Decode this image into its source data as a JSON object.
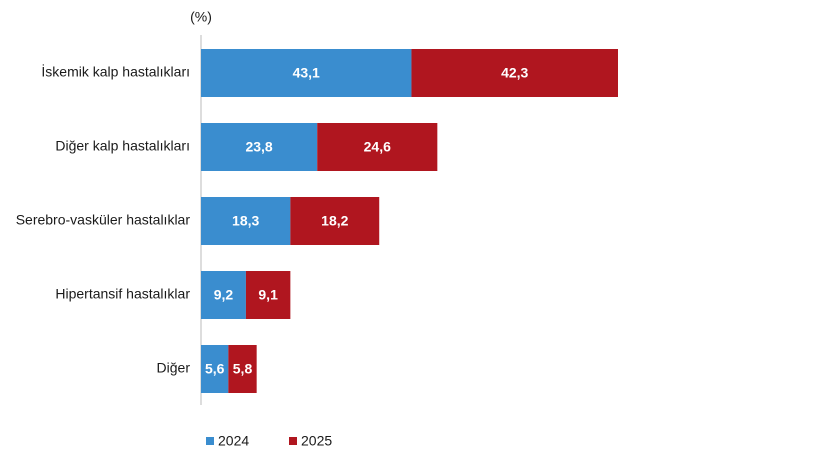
{
  "chart_data": {
    "type": "bar",
    "orientation": "horizontal",
    "stacked": true,
    "unit_label": "(%)",
    "categories": [
      "İskemik kalp hastalıkları",
      "Diğer kalp hastalıkları",
      "Serebro-vasküler hastalıklar",
      "Hipertansif hastalıklar",
      "Diğer"
    ],
    "series": [
      {
        "name": "2024",
        "color": "#3a8dcf",
        "values": [
          43.1,
          23.8,
          18.3,
          9.2,
          5.6
        ],
        "value_labels": [
          "43,1",
          "23,8",
          "18,3",
          "9,2",
          "5,6"
        ]
      },
      {
        "name": "2025",
        "color": "#b0161f",
        "values": [
          42.3,
          24.6,
          18.2,
          9.1,
          5.8
        ],
        "value_labels": [
          "42,3",
          "24,6",
          "18,2",
          "9,1",
          "5,8"
        ]
      }
    ]
  }
}
